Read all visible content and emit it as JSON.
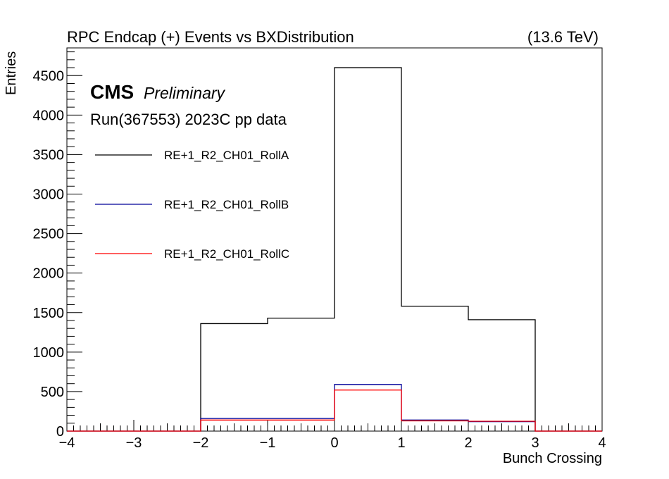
{
  "chart_data": {
    "type": "histogram-step",
    "title": "RPC Endcap (+)  Events vs BXDistribution",
    "energy_label": "(13.6 TeV)",
    "xlabel": "Bunch Crossing",
    "ylabel": "Entries",
    "xlim": [
      -4,
      4
    ],
    "ylim": [
      0,
      4850
    ],
    "x_ticks": [
      -4,
      -3,
      -2,
      -1,
      0,
      1,
      2,
      3,
      4
    ],
    "x_tick_labels": [
      "−4",
      "−3",
      "−2",
      "−1",
      "0",
      "1",
      "2",
      "3",
      "4"
    ],
    "y_ticks": [
      0,
      500,
      1000,
      1500,
      2000,
      2500,
      3000,
      3500,
      4000,
      4500
    ],
    "y_tick_labels": [
      "0",
      "500",
      "1000",
      "1500",
      "2000",
      "2500",
      "3000",
      "3500",
      "4000",
      "4500"
    ],
    "bin_edges": [
      -4,
      -3,
      -2,
      -1,
      0,
      1,
      2,
      3,
      4
    ],
    "grid": false,
    "legend_position": "top-left",
    "cms_label": "CMS",
    "cms_sublabel": "Preliminary",
    "run_label": "Run(367553) 2023C pp data",
    "series": [
      {
        "name": "RE+1_R2_CH01_RollA",
        "color": "#000000",
        "values": [
          0,
          0,
          1360,
          1430,
          4600,
          1580,
          1410,
          0
        ]
      },
      {
        "name": "RE+1_R2_CH01_RollB",
        "color": "#000099",
        "values": [
          0,
          0,
          160,
          160,
          590,
          140,
          120,
          0
        ]
      },
      {
        "name": "RE+1_R2_CH01_RollC",
        "color": "#ff0000",
        "values": [
          0,
          0,
          140,
          140,
          520,
          130,
          125,
          0
        ]
      }
    ]
  }
}
